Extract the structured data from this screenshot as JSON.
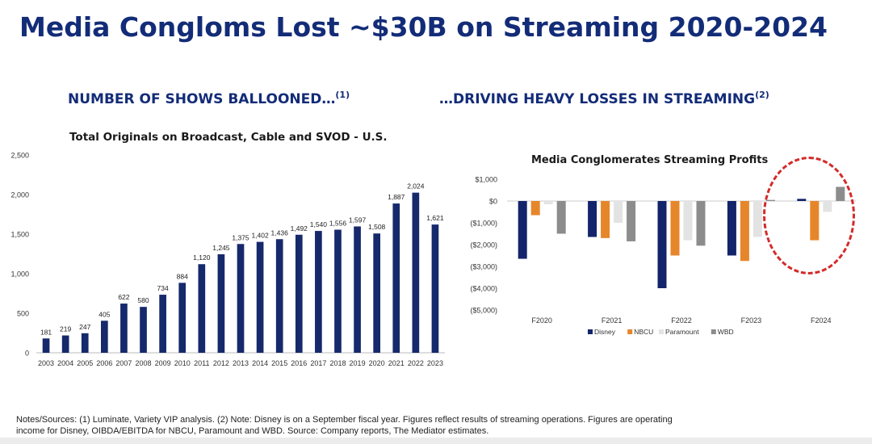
{
  "page": {
    "title": "Media Congloms Lost ~$30B on Streaming 2020-2024",
    "left_heading": "NUMBER OF SHOWS BALLOONED…",
    "left_heading_note": "(1)",
    "right_heading": "…DRIVING HEAVY LOSSES IN STREAMING",
    "right_heading_note": "(2)",
    "notes_line1": "Notes/Sources:  (1) Luminate, Variety VIP analysis. (2) Note: Disney is on a September fiscal year. Figures reflect results of streaming operations. Figures are operating",
    "notes_line2": "income for Disney, OIBDA/EBITDA for NBCU, Paramount and WBD. Source: Company reports, The Mediator estimates."
  },
  "colors": {
    "title": "#132c78",
    "bar_left": "#15296b",
    "Disney": "#13246b",
    "NBCU": "#e6862a",
    "Paramount": "#e3e3e3",
    "WBD": "#8c8c8c",
    "highlight_circle": "#d42a2a"
  },
  "chart_data": [
    {
      "type": "bar",
      "title": "Total Originals on Broadcast, Cable and SVOD - U.S.",
      "categories": [
        "2003",
        "2004",
        "2005",
        "2006",
        "2007",
        "2008",
        "2009",
        "2010",
        "2011",
        "2012",
        "2013",
        "2014",
        "2015",
        "2016",
        "2017",
        "2018",
        "2019",
        "2020",
        "2021",
        "2022",
        "2023"
      ],
      "values": [
        181,
        219,
        247,
        405,
        622,
        580,
        734,
        884,
        1120,
        1245,
        1375,
        1402,
        1436,
        1492,
        1540,
        1556,
        1597,
        1508,
        1887,
        2024,
        1621
      ],
      "data_labels": [
        "181",
        "219",
        "247",
        "405",
        "622",
        "580",
        "734",
        "884",
        "1,120",
        "1,245",
        "1,375",
        "1,402",
        "1,436",
        "1,492",
        "1,540",
        "1,556",
        "1,597",
        "1,508",
        "1,887",
        "2,024",
        "1,621"
      ],
      "yticks": [
        "0",
        "500",
        "1,000",
        "1,500",
        "2,000",
        "2,500"
      ],
      "ytick_values": [
        0,
        500,
        1000,
        1500,
        2000,
        2500
      ],
      "ylim": [
        0,
        2500
      ],
      "grid": false,
      "legend": "none"
    },
    {
      "type": "bar",
      "title": "Media Conglomerates Streaming Profits",
      "categories": [
        "F2020",
        "F2021",
        "F2022",
        "F2023",
        "F2024"
      ],
      "series": [
        {
          "name": "Disney",
          "values": [
            -2650,
            -1650,
            -4000,
            -2500,
            100
          ]
        },
        {
          "name": "NBCU",
          "values": [
            -650,
            -1700,
            -2500,
            -2750,
            -1800
          ]
        },
        {
          "name": "Paramount",
          "values": [
            -150,
            -1000,
            -1800,
            -1650,
            -500
          ]
        },
        {
          "name": "WBD",
          "values": [
            -1500,
            -1850,
            -2050,
            50,
            650
          ]
        }
      ],
      "yticks": [
        "$1,000",
        "$0",
        "($1,000)",
        "($2,000)",
        "($3,000)",
        "($4,000)",
        "($5,000)"
      ],
      "ytick_values": [
        1000,
        0,
        -1000,
        -2000,
        -3000,
        -4000,
        -5000
      ],
      "ylim": [
        -5000,
        1000
      ],
      "grid": false,
      "legend": "bottom",
      "annotation": "dashed circle around F2024"
    }
  ]
}
